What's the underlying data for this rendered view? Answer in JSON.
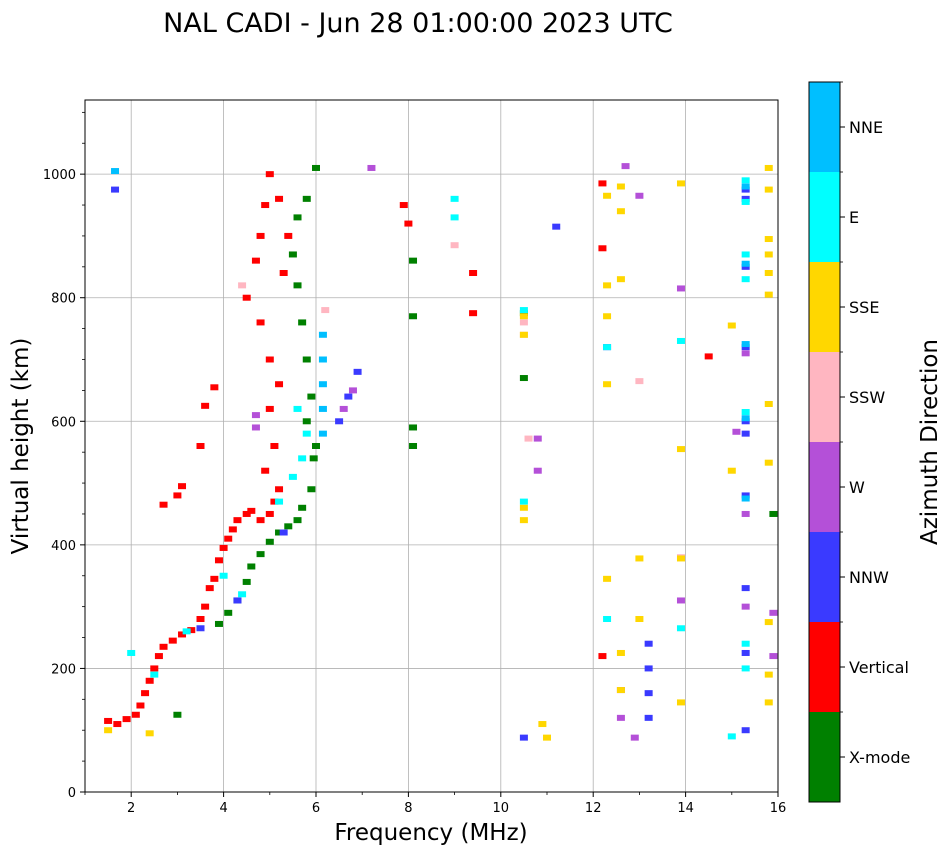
{
  "chart_data": {
    "type": "scatter",
    "title": "NAL CADI - Jun 28 01:00:00 2023 UTC",
    "xlabel": "Frequency (MHz)",
    "ylabel": "Virtual height (km)",
    "xlim": [
      1,
      16
    ],
    "ylim": [
      0,
      1120
    ],
    "xticks": [
      2,
      4,
      6,
      8,
      10,
      12,
      14,
      16
    ],
    "xtick_labels": [
      "2",
      "4",
      "6",
      "8",
      "10",
      "12",
      "14",
      "16"
    ],
    "yticks": [
      0,
      200,
      400,
      600,
      800,
      1000
    ],
    "ytick_labels": [
      "0",
      "200",
      "400",
      "600",
      "800",
      "1000"
    ],
    "grid": true,
    "colorbar": {
      "label": "Azimuth Direction",
      "categories": [
        {
          "name": "X-mode",
          "color": "#008000"
        },
        {
          "name": "Vertical",
          "color": "#ff0000"
        },
        {
          "name": "NNW",
          "color": "#3a3aff"
        },
        {
          "name": "W",
          "color": "#b450d8"
        },
        {
          "name": "SSW",
          "color": "#ffb6c1"
        },
        {
          "name": "SSE",
          "color": "#ffd700"
        },
        {
          "name": "E",
          "color": "#00ffff"
        },
        {
          "name": "NNE",
          "color": "#00bfff"
        }
      ]
    },
    "series": [
      {
        "name": "Vertical",
        "color": "#ff0000",
        "points": [
          [
            1.5,
            115
          ],
          [
            1.7,
            110
          ],
          [
            1.9,
            118
          ],
          [
            2.1,
            125
          ],
          [
            2.2,
            140
          ],
          [
            2.3,
            160
          ],
          [
            2.4,
            180
          ],
          [
            2.5,
            200
          ],
          [
            2.6,
            220
          ],
          [
            2.7,
            235
          ],
          [
            2.9,
            245
          ],
          [
            3.1,
            255
          ],
          [
            3.3,
            262
          ],
          [
            3.5,
            280
          ],
          [
            3.6,
            300
          ],
          [
            3.7,
            330
          ],
          [
            3.8,
            345
          ],
          [
            3.9,
            375
          ],
          [
            4.0,
            395
          ],
          [
            4.1,
            410
          ],
          [
            4.2,
            425
          ],
          [
            4.3,
            440
          ],
          [
            4.5,
            450
          ],
          [
            4.6,
            455
          ],
          [
            4.8,
            440
          ],
          [
            5.0,
            450
          ],
          [
            5.1,
            470
          ],
          [
            5.2,
            490
          ],
          [
            4.9,
            520
          ],
          [
            5.1,
            560
          ],
          [
            5.0,
            620
          ],
          [
            5.2,
            660
          ],
          [
            5.0,
            700
          ],
          [
            4.8,
            760
          ],
          [
            4.5,
            800
          ],
          [
            4.7,
            860
          ],
          [
            4.8,
            900
          ],
          [
            4.9,
            950
          ],
          [
            5.0,
            1000
          ],
          [
            5.2,
            960
          ],
          [
            5.4,
            900
          ],
          [
            5.3,
            840
          ],
          [
            3.0,
            480
          ],
          [
            3.1,
            495
          ],
          [
            2.7,
            465
          ],
          [
            3.5,
            560
          ],
          [
            3.6,
            625
          ],
          [
            3.8,
            655
          ],
          [
            12.2,
            985
          ],
          [
            12.2,
            880
          ],
          [
            12.2,
            220
          ],
          [
            14.5,
            705
          ],
          [
            9.4,
            840
          ],
          [
            9.4,
            775
          ],
          [
            7.9,
            950
          ],
          [
            8.0,
            920
          ]
        ]
      },
      {
        "name": "X-mode",
        "color": "#008000",
        "points": [
          [
            3.9,
            272
          ],
          [
            4.1,
            290
          ],
          [
            4.3,
            310
          ],
          [
            4.5,
            340
          ],
          [
            4.6,
            365
          ],
          [
            4.8,
            385
          ],
          [
            5.0,
            405
          ],
          [
            5.2,
            420
          ],
          [
            5.4,
            430
          ],
          [
            5.6,
            440
          ],
          [
            5.7,
            460
          ],
          [
            5.9,
            490
          ],
          [
            5.95,
            540
          ],
          [
            6.0,
            560
          ],
          [
            5.8,
            600
          ],
          [
            5.9,
            640
          ],
          [
            5.8,
            700
          ],
          [
            5.7,
            760
          ],
          [
            5.6,
            820
          ],
          [
            5.5,
            870
          ],
          [
            5.6,
            930
          ],
          [
            5.8,
            960
          ],
          [
            6.0,
            1010
          ],
          [
            3.0,
            125
          ],
          [
            8.1,
            590
          ],
          [
            8.1,
            560
          ],
          [
            8.1,
            770
          ],
          [
            8.1,
            860
          ],
          [
            10.5,
            670
          ],
          [
            10.5,
            775
          ],
          [
            15.9,
            450
          ]
        ]
      },
      {
        "name": "NNW",
        "color": "#3a3aff",
        "points": [
          [
            1.65,
            975
          ],
          [
            3.5,
            265
          ],
          [
            4.3,
            310
          ],
          [
            5.3,
            420
          ],
          [
            6.5,
            600
          ],
          [
            6.7,
            640
          ],
          [
            6.9,
            680
          ],
          [
            13.2,
            120
          ],
          [
            13.2,
            160
          ],
          [
            13.2,
            200
          ],
          [
            13.2,
            240
          ],
          [
            15.3,
            975
          ],
          [
            15.3,
            960
          ],
          [
            15.3,
            850
          ],
          [
            15.3,
            720
          ],
          [
            15.3,
            600
          ],
          [
            15.3,
            580
          ],
          [
            15.3,
            480
          ],
          [
            15.3,
            330
          ],
          [
            15.3,
            225
          ],
          [
            15.3,
            100
          ],
          [
            12.3,
            720
          ],
          [
            11.2,
            915
          ],
          [
            10.5,
            88
          ]
        ]
      },
      {
        "name": "W",
        "color": "#b450d8",
        "points": [
          [
            4.7,
            610
          ],
          [
            4.7,
            590
          ],
          [
            6.6,
            620
          ],
          [
            6.8,
            650
          ],
          [
            7.2,
            1010
          ],
          [
            12.7,
            1013
          ],
          [
            13.0,
            965
          ],
          [
            12.6,
            165
          ],
          [
            12.6,
            120
          ],
          [
            12.9,
            88
          ],
          [
            13.9,
            815
          ],
          [
            13.9,
            310
          ],
          [
            15.1,
            583
          ],
          [
            15.3,
            710
          ],
          [
            15.3,
            450
          ],
          [
            15.3,
            300
          ],
          [
            15.9,
            290
          ],
          [
            15.9,
            220
          ],
          [
            10.8,
            572
          ],
          [
            10.8,
            520
          ]
        ]
      },
      {
        "name": "SSW",
        "color": "#ffb6c1",
        "points": [
          [
            6.2,
            780
          ],
          [
            10.5,
            760
          ],
          [
            10.5,
            740
          ],
          [
            10.6,
            572
          ],
          [
            13.0,
            665
          ],
          [
            13.9,
            380
          ],
          [
            9.0,
            885
          ],
          [
            4.4,
            820
          ]
        ]
      },
      {
        "name": "SSE",
        "color": "#ffd700",
        "points": [
          [
            1.5,
            100
          ],
          [
            2.4,
            95
          ],
          [
            10.5,
            770
          ],
          [
            10.5,
            740
          ],
          [
            10.5,
            460
          ],
          [
            10.5,
            440
          ],
          [
            12.3,
            965
          ],
          [
            12.3,
            820
          ],
          [
            12.3,
            770
          ],
          [
            12.3,
            660
          ],
          [
            12.3,
            345
          ],
          [
            12.6,
            980
          ],
          [
            12.6,
            940
          ],
          [
            12.6,
            830
          ],
          [
            12.6,
            225
          ],
          [
            12.6,
            165
          ],
          [
            13.0,
            378
          ],
          [
            13.0,
            280
          ],
          [
            13.9,
            985
          ],
          [
            13.9,
            555
          ],
          [
            13.9,
            378
          ],
          [
            13.9,
            145
          ],
          [
            15.0,
            755
          ],
          [
            15.0,
            520
          ],
          [
            15.8,
            1010
          ],
          [
            15.8,
            975
          ],
          [
            15.8,
            895
          ],
          [
            15.8,
            870
          ],
          [
            15.8,
            840
          ],
          [
            15.8,
            805
          ],
          [
            15.8,
            628
          ],
          [
            15.8,
            533
          ],
          [
            15.8,
            275
          ],
          [
            15.8,
            190
          ],
          [
            15.8,
            145
          ],
          [
            10.9,
            110
          ],
          [
            11.0,
            88
          ]
        ]
      },
      {
        "name": "E",
        "color": "#00ffff",
        "points": [
          [
            2.0,
            225
          ],
          [
            2.5,
            190
          ],
          [
            3.2,
            260
          ],
          [
            4.0,
            350
          ],
          [
            4.4,
            320
          ],
          [
            5.2,
            470
          ],
          [
            5.5,
            510
          ],
          [
            5.7,
            540
          ],
          [
            5.8,
            580
          ],
          [
            5.6,
            620
          ],
          [
            9.0,
            960
          ],
          [
            9.0,
            930
          ],
          [
            10.5,
            780
          ],
          [
            10.5,
            470
          ],
          [
            12.3,
            280
          ],
          [
            12.3,
            720
          ],
          [
            13.9,
            730
          ],
          [
            13.9,
            265
          ],
          [
            15.0,
            90
          ],
          [
            15.3,
            990
          ],
          [
            15.3,
            955
          ],
          [
            15.3,
            870
          ],
          [
            15.3,
            830
          ],
          [
            15.3,
            615
          ],
          [
            15.3,
            240
          ],
          [
            15.3,
            200
          ]
        ]
      },
      {
        "name": "NNE",
        "color": "#00bfff",
        "points": [
          [
            1.65,
            1005
          ],
          [
            6.15,
            740
          ],
          [
            6.15,
            700
          ],
          [
            6.15,
            660
          ],
          [
            6.15,
            620
          ],
          [
            6.15,
            580
          ],
          [
            15.3,
            980
          ],
          [
            15.3,
            855
          ],
          [
            15.3,
            725
          ],
          [
            15.3,
            605
          ],
          [
            15.3,
            475
          ]
        ]
      }
    ]
  }
}
